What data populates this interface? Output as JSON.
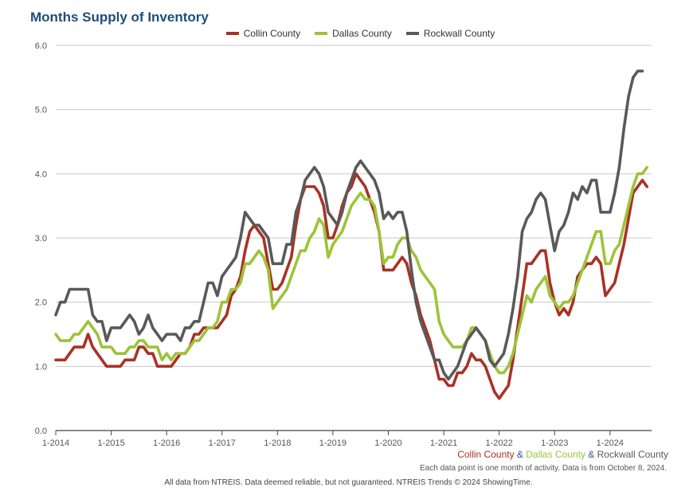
{
  "chart_data": {
    "type": "line",
    "title": "Months Supply of Inventory",
    "xlabel": "",
    "ylabel": "",
    "ylim": [
      0,
      6
    ],
    "y_ticks": [
      "0.0",
      "1.0",
      "2.0",
      "3.0",
      "4.0",
      "5.0",
      "6.0"
    ],
    "x_ticks": [
      "1-2014",
      "1-2015",
      "1-2016",
      "1-2017",
      "1-2018",
      "1-2019",
      "1-2020",
      "1-2021",
      "1-2022",
      "1-2023",
      "1-2024"
    ],
    "grid": "horizontal",
    "legend_position": "top-center",
    "series": [
      {
        "name": "Collin County",
        "color": "#a93226",
        "values": [
          1.1,
          1.1,
          1.1,
          1.2,
          1.3,
          1.3,
          1.3,
          1.5,
          1.3,
          1.2,
          1.1,
          1.0,
          1.0,
          1.0,
          1.0,
          1.1,
          1.1,
          1.1,
          1.3,
          1.3,
          1.2,
          1.2,
          1.0,
          1.0,
          1.0,
          1.0,
          1.1,
          1.2,
          1.2,
          1.3,
          1.5,
          1.5,
          1.6,
          1.6,
          1.6,
          1.6,
          1.7,
          1.8,
          2.1,
          2.2,
          2.4,
          2.8,
          3.1,
          3.2,
          3.1,
          3.0,
          2.6,
          2.2,
          2.2,
          2.3,
          2.5,
          2.7,
          3.2,
          3.6,
          3.8,
          3.8,
          3.8,
          3.7,
          3.5,
          3.0,
          3.0,
          3.2,
          3.5,
          3.7,
          3.8,
          4.0,
          3.9,
          3.8,
          3.6,
          3.4,
          3.1,
          2.5,
          2.5,
          2.5,
          2.6,
          2.7,
          2.6,
          2.3,
          2.1,
          1.8,
          1.6,
          1.4,
          1.1,
          0.8,
          0.8,
          0.7,
          0.7,
          0.9,
          0.9,
          1.0,
          1.2,
          1.1,
          1.1,
          1.0,
          0.8,
          0.6,
          0.5,
          0.6,
          0.7,
          1.1,
          1.6,
          2.1,
          2.6,
          2.6,
          2.7,
          2.8,
          2.8,
          2.3,
          2.0,
          1.8,
          1.9,
          1.8,
          2.0,
          2.4,
          2.5,
          2.6,
          2.6,
          2.7,
          2.6,
          2.1,
          2.2,
          2.3,
          2.6,
          2.9,
          3.3,
          3.7,
          3.8,
          3.9,
          3.8
        ]
      },
      {
        "name": "Dallas County",
        "color": "#9cc438",
        "values": [
          1.5,
          1.4,
          1.4,
          1.4,
          1.5,
          1.5,
          1.6,
          1.7,
          1.6,
          1.5,
          1.3,
          1.3,
          1.3,
          1.2,
          1.2,
          1.2,
          1.3,
          1.3,
          1.4,
          1.4,
          1.3,
          1.3,
          1.3,
          1.1,
          1.2,
          1.1,
          1.2,
          1.2,
          1.2,
          1.3,
          1.4,
          1.4,
          1.5,
          1.6,
          1.6,
          1.7,
          2.0,
          2.0,
          2.2,
          2.2,
          2.3,
          2.6,
          2.6,
          2.7,
          2.8,
          2.7,
          2.5,
          1.9,
          2.0,
          2.1,
          2.2,
          2.4,
          2.6,
          2.8,
          2.8,
          3.0,
          3.1,
          3.3,
          3.2,
          2.7,
          2.9,
          3.0,
          3.1,
          3.3,
          3.5,
          3.6,
          3.7,
          3.6,
          3.6,
          3.5,
          3.1,
          2.6,
          2.7,
          2.7,
          2.9,
          3.0,
          3.0,
          2.8,
          2.7,
          2.5,
          2.4,
          2.3,
          2.2,
          1.7,
          1.5,
          1.4,
          1.3,
          1.3,
          1.3,
          1.4,
          1.6,
          1.6,
          1.5,
          1.4,
          1.2,
          1.0,
          0.9,
          0.9,
          1.0,
          1.2,
          1.5,
          1.8,
          2.1,
          2.0,
          2.2,
          2.3,
          2.4,
          2.1,
          2.0,
          1.9,
          2.0,
          2.0,
          2.1,
          2.3,
          2.5,
          2.7,
          2.9,
          3.1,
          3.1,
          2.6,
          2.6,
          2.8,
          2.9,
          3.2,
          3.5,
          3.8,
          4.0,
          4.0,
          4.1
        ]
      },
      {
        "name": "Rockwall County",
        "color": "#595959",
        "values": [
          1.8,
          2.0,
          2.0,
          2.2,
          2.2,
          2.2,
          2.2,
          2.2,
          1.8,
          1.7,
          1.7,
          1.4,
          1.6,
          1.6,
          1.6,
          1.7,
          1.8,
          1.7,
          1.5,
          1.6,
          1.8,
          1.6,
          1.5,
          1.4,
          1.5,
          1.5,
          1.5,
          1.4,
          1.6,
          1.6,
          1.7,
          1.7,
          2.0,
          2.3,
          2.3,
          2.1,
          2.4,
          2.5,
          2.6,
          2.7,
          3.0,
          3.4,
          3.3,
          3.2,
          3.2,
          3.1,
          3.0,
          2.6,
          2.6,
          2.6,
          2.9,
          2.9,
          3.4,
          3.6,
          3.9,
          4.0,
          4.1,
          4.0,
          3.8,
          3.4,
          3.3,
          3.2,
          3.4,
          3.7,
          3.9,
          4.1,
          4.2,
          4.1,
          4.0,
          3.9,
          3.7,
          3.3,
          3.4,
          3.3,
          3.4,
          3.4,
          3.1,
          2.5,
          2.0,
          1.7,
          1.5,
          1.3,
          1.1,
          1.1,
          0.9,
          0.8,
          0.9,
          1.0,
          1.2,
          1.4,
          1.5,
          1.6,
          1.5,
          1.4,
          1.1,
          1.0,
          1.1,
          1.2,
          1.5,
          1.9,
          2.4,
          3.1,
          3.3,
          3.4,
          3.6,
          3.7,
          3.6,
          3.2,
          2.8,
          3.1,
          3.2,
          3.4,
          3.7,
          3.6,
          3.8,
          3.7,
          3.9,
          3.9,
          3.4,
          3.4,
          3.4,
          3.7,
          4.1,
          4.7,
          5.2,
          5.5,
          5.6,
          5.6
        ]
      }
    ]
  },
  "footer_legend": {
    "collin": "Collin County",
    "sep1": " & ",
    "dallas": "Dallas County",
    "sep2": " & ",
    "rockwall": "Rockwall County"
  },
  "note": "Each data point is one month of activity. Data is from October 8, 2024.",
  "credit": "All data from NTREIS. Data deemed reliable, but not guaranteed. NTREIS Trends © 2024 ShowingTime."
}
